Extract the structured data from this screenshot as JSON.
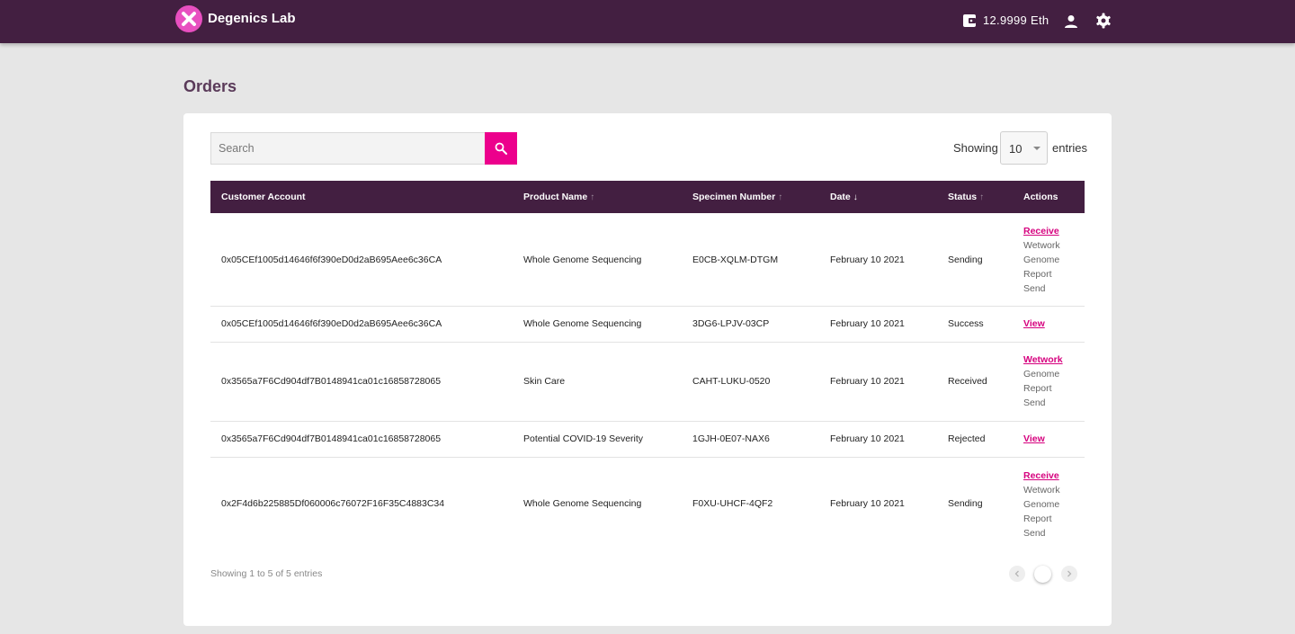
{
  "header": {
    "app_title": "Degenics Lab",
    "balance": "12.9999 Eth",
    "accent": "#ec008c",
    "bar_color": "#431f41"
  },
  "page": {
    "title": "Orders"
  },
  "search": {
    "placeholder": "Search",
    "value": ""
  },
  "entries": {
    "showing_label": "Showing",
    "value": "10",
    "suffix": "entries"
  },
  "table": {
    "columns": [
      {
        "label": "Customer Account",
        "sort": ""
      },
      {
        "label": "Product Name",
        "sort": "↑"
      },
      {
        "label": "Specimen Number",
        "sort": "↑"
      },
      {
        "label": "Date",
        "sort": "↓"
      },
      {
        "label": "Status",
        "sort": "↑"
      },
      {
        "label": "Actions",
        "sort": ""
      }
    ],
    "rows": [
      {
        "account": "0x05CEf1005d14646f6f390eD0d2aB695Aee6c36CA",
        "product": "Whole Genome Sequencing",
        "specimen": "E0CB-XQLM-DTGM",
        "date": "February 10 2021",
        "status": "Sending",
        "actions": [
          {
            "label": "Receive",
            "link": true
          },
          {
            "label": "Wetwork",
            "link": false
          },
          {
            "label": "Genome",
            "link": false
          },
          {
            "label": "Report",
            "link": false
          },
          {
            "label": "Send",
            "link": false
          }
        ]
      },
      {
        "account": "0x05CEf1005d14646f6f390eD0d2aB695Aee6c36CA",
        "product": "Whole Genome Sequencing",
        "specimen": "3DG6-LPJV-03CP",
        "date": "February 10 2021",
        "status": "Success",
        "actions": [
          {
            "label": "View",
            "link": true
          }
        ]
      },
      {
        "account": "0x3565a7F6Cd904df7B0148941ca01c16858728065",
        "product": "Skin Care",
        "specimen": "CAHT-LUKU-0520",
        "date": "February 10 2021",
        "status": "Received",
        "actions": [
          {
            "label": "Wetwork",
            "link": true
          },
          {
            "label": "Genome",
            "link": false
          },
          {
            "label": "Report",
            "link": false
          },
          {
            "label": "Send",
            "link": false
          }
        ]
      },
      {
        "account": "0x3565a7F6Cd904df7B0148941ca01c16858728065",
        "product": "Potential COVID-19 Severity",
        "specimen": "1GJH-0E07-NAX6",
        "date": "February 10 2021",
        "status": "Rejected",
        "actions": [
          {
            "label": "View",
            "link": true
          }
        ]
      },
      {
        "account": "0x2F4d6b225885Df060006c76072F16F35C4883C34",
        "product": "Whole Genome Sequencing",
        "specimen": "F0XU-UHCF-4QF2",
        "date": "February 10 2021",
        "status": "Sending",
        "actions": [
          {
            "label": "Receive",
            "link": true
          },
          {
            "label": "Wetwork",
            "link": false
          },
          {
            "label": "Genome",
            "link": false
          },
          {
            "label": "Report",
            "link": false
          },
          {
            "label": "Send",
            "link": false
          }
        ]
      }
    ]
  },
  "footer": {
    "info": "Showing 1 to 5 of 5 entries"
  }
}
